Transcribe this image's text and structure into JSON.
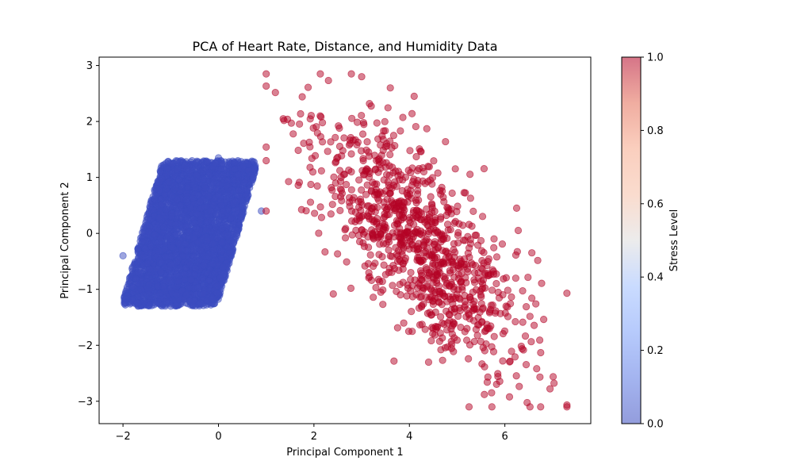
{
  "chart_data": {
    "type": "scatter",
    "title": "PCA of Heart Rate, Distance, and Humidity Data",
    "xlabel": "Principal Component 1",
    "ylabel": "Principal Component 2",
    "xlim": [
      -2.5,
      7.8
    ],
    "ylim": [
      -3.4,
      3.15
    ],
    "xticks": [
      -2,
      0,
      2,
      4,
      6
    ],
    "xtick_labels": [
      "−2",
      "0",
      "2",
      "4",
      "6"
    ],
    "yticks": [
      -3,
      -2,
      -1,
      0,
      1,
      2,
      3
    ],
    "ytick_labels": [
      "−3",
      "−2",
      "−1",
      "0",
      "1",
      "2",
      "3"
    ],
    "grid": false,
    "colormap": "coolwarm",
    "alpha": 0.5,
    "colorbar": {
      "label": "Stress Level",
      "range": [
        0.0,
        1.0
      ],
      "ticks": [
        0.0,
        0.2,
        0.4,
        0.6,
        0.8,
        1.0
      ],
      "tick_labels": [
        "0.0",
        "0.2",
        "0.4",
        "0.6",
        "0.8",
        "1.0"
      ]
    },
    "clusters": [
      {
        "stress_level": 0,
        "color": "#3b4cc0",
        "n_points": 4000,
        "center": [
          -0.6,
          -0.05
        ],
        "x_range": [
          -2.0,
          1.0
        ],
        "y_range": [
          -1.35,
          1.35
        ],
        "orientation": "tilted up-right"
      },
      {
        "stress_level": 1,
        "color": "#b40426",
        "n_points": 1000,
        "center": [
          4.2,
          -0.1
        ],
        "x_range": [
          1.0,
          7.3
        ],
        "y_range": [
          -3.1,
          2.85
        ],
        "orientation": "tilted down-right"
      }
    ],
    "sample_points": [
      {
        "x": -2.0,
        "y": -0.4,
        "stress": 0
      },
      {
        "x": 0.0,
        "y": 1.35,
        "stress": 0
      },
      {
        "x": 0.9,
        "y": 0.4,
        "stress": 0
      },
      {
        "x": -1.0,
        "y": -1.3,
        "stress": 0
      },
      {
        "x": 3.0,
        "y": 2.8,
        "stress": 1
      },
      {
        "x": 3.6,
        "y": 2.6,
        "stress": 1
      },
      {
        "x": 7.3,
        "y": -1.07,
        "stress": 1
      },
      {
        "x": 5.25,
        "y": -3.1,
        "stress": 1
      },
      {
        "x": 4.1,
        "y": 2.45,
        "stress": 1
      },
      {
        "x": 1.0,
        "y": 1.3,
        "stress": 1
      },
      {
        "x": 1.0,
        "y": 0.4,
        "stress": 1
      }
    ]
  }
}
